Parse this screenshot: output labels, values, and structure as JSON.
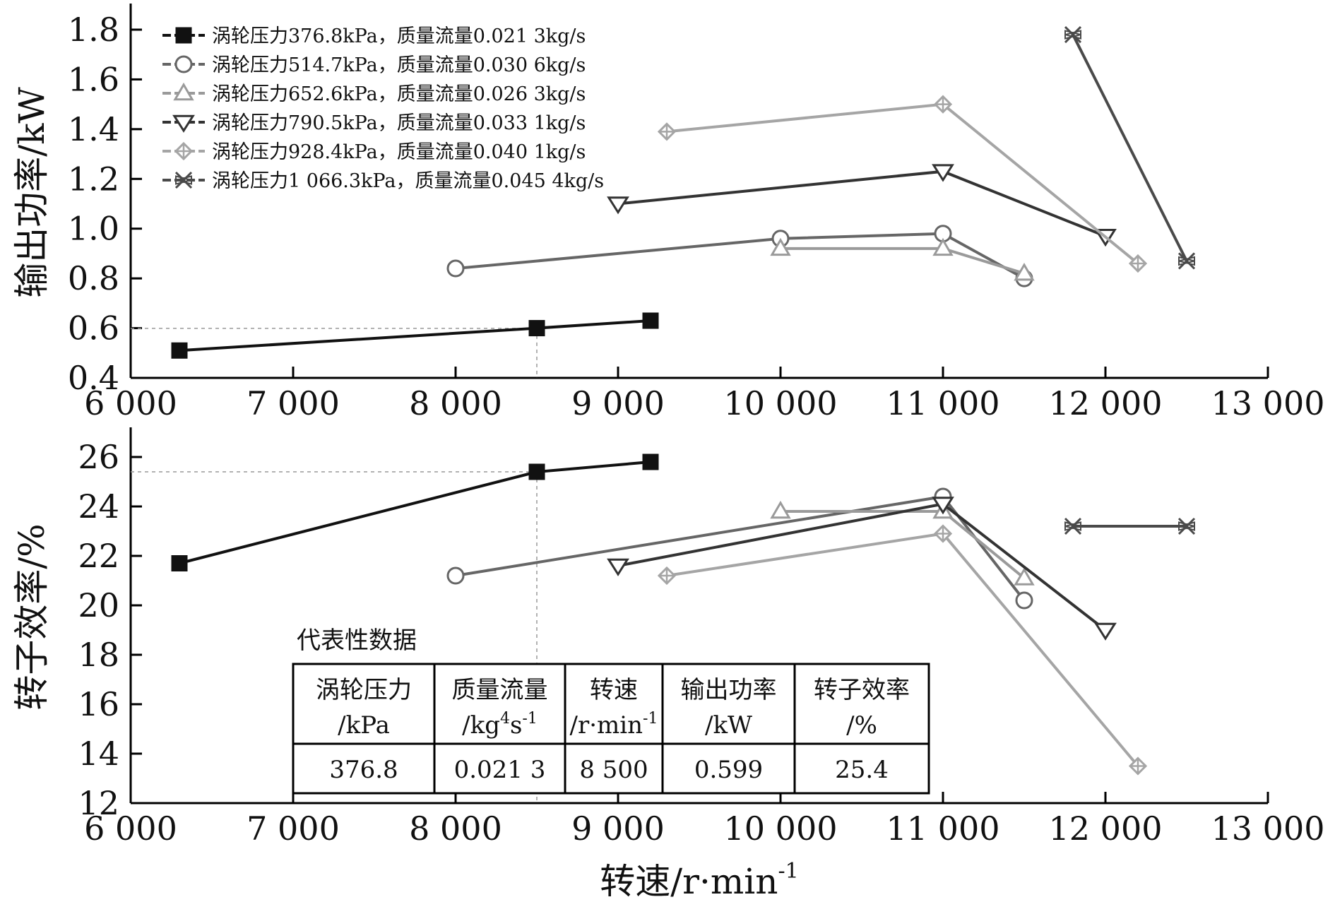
{
  "chart_data": [
    {
      "type": "line",
      "id": "power",
      "xlabel": "",
      "ylabel": "输出功率/kW",
      "xlim": [
        6000,
        13000
      ],
      "ylim": [
        0.4,
        1.9
      ],
      "xticks": [
        6000,
        7000,
        8000,
        9000,
        10000,
        11000,
        12000,
        13000
      ],
      "xtick_labels": [
        "6 000",
        "7 000",
        "8 000",
        "9 000",
        "10 000",
        "11 000",
        "12 000",
        "13 000"
      ],
      "yticks": [
        0.4,
        0.6,
        0.8,
        1.0,
        1.2,
        1.4,
        1.6,
        1.8
      ],
      "ytick_labels": [
        "0.4",
        "0.6",
        "0.8",
        "1.0",
        "1.2",
        "1.4",
        "1.6",
        "1.8"
      ],
      "reference": {
        "x": 8500,
        "y": 0.599
      },
      "legend_position": "top-left",
      "series": [
        {
          "name": "涡轮压力376.8kPa，质量流量0.021 3kg/s",
          "marker": "square",
          "color": "#111111",
          "x": [
            6300,
            8500,
            9200
          ],
          "y": [
            0.51,
            0.6,
            0.63
          ]
        },
        {
          "name": "涡轮压力514.7kPa，质量流量0.030 6kg/s",
          "marker": "circle",
          "color": "#666666",
          "x": [
            8000,
            10000,
            11000,
            11500
          ],
          "y": [
            0.84,
            0.96,
            0.98,
            0.8
          ]
        },
        {
          "name": "涡轮压力652.6kPa，质量流量0.026 3kg/s",
          "marker": "triangle-up",
          "color": "#9a9a9a",
          "x": [
            10000,
            11000,
            11500
          ],
          "y": [
            0.92,
            0.92,
            0.82
          ]
        },
        {
          "name": "涡轮压力790.5kPa，质量流量0.033 1kg/s",
          "marker": "triangle-down",
          "color": "#333333",
          "x": [
            9000,
            11000,
            12000
          ],
          "y": [
            1.1,
            1.23,
            0.97
          ]
        },
        {
          "name": "涡轮压力928.4kPa，质量流量0.040 1kg/s",
          "marker": "diamond-plus",
          "color": "#a5a5a5",
          "x": [
            9300,
            11000,
            12200
          ],
          "y": [
            1.39,
            1.5,
            0.86
          ]
        },
        {
          "name": "涡轮压力1 066.3kPa，质量流量0.045 4kg/s",
          "marker": "x-star",
          "color": "#4a4a4a",
          "x": [
            11800,
            12500
          ],
          "y": [
            1.78,
            0.87
          ]
        }
      ]
    },
    {
      "type": "line",
      "id": "efficiency",
      "xlabel": "转速/r·min",
      "xlabel_sup": "-1",
      "ylabel": "转子效率/%",
      "xlim": [
        6000,
        13000
      ],
      "ylim": [
        12,
        27
      ],
      "xticks": [
        6000,
        7000,
        8000,
        9000,
        10000,
        11000,
        12000,
        13000
      ],
      "xtick_labels": [
        "6 000",
        "7 000",
        "8 000",
        "9 000",
        "10 000",
        "11 000",
        "12 000",
        "13 000"
      ],
      "yticks": [
        12,
        14,
        16,
        18,
        20,
        22,
        24,
        26
      ],
      "ytick_labels": [
        "12",
        "14",
        "16",
        "18",
        "20",
        "22",
        "24",
        "26"
      ],
      "reference": {
        "x": 8500,
        "y": 25.4
      },
      "series": [
        {
          "x": [
            6300,
            8500,
            9200
          ],
          "y": [
            21.7,
            25.4,
            25.8
          ]
        },
        {
          "x": [
            8000,
            11000,
            11500
          ],
          "y": [
            21.2,
            24.4,
            20.2
          ]
        },
        {
          "x": [
            10000,
            11000,
            11500
          ],
          "y": [
            23.8,
            23.8,
            21.1
          ]
        },
        {
          "x": [
            9000,
            11000,
            12000
          ],
          "y": [
            21.6,
            24.1,
            19.0
          ]
        },
        {
          "x": [
            9300,
            11000,
            12200
          ],
          "y": [
            21.2,
            22.9,
            13.5
          ]
        },
        {
          "x": [
            11800,
            12500
          ],
          "y": [
            23.2,
            23.2
          ]
        }
      ],
      "table": {
        "caption": "代表性数据",
        "headers": [
          {
            "line1": "涡轮压力",
            "line2": "/kPa"
          },
          {
            "line1": "质量流量",
            "line2": "/kg",
            "sup2": "4",
            "line2b": "s",
            "sup3": "-1"
          },
          {
            "line1": "转速",
            "line2": "/r·min",
            "sup2": "-1"
          },
          {
            "line1": "输出功率",
            "line2": "/kW"
          },
          {
            "line1": "转子效率",
            "line2": "/%"
          }
        ],
        "row": [
          "376.8",
          "0.021 3",
          "8 500",
          "0.599",
          "25.4"
        ]
      }
    }
  ]
}
